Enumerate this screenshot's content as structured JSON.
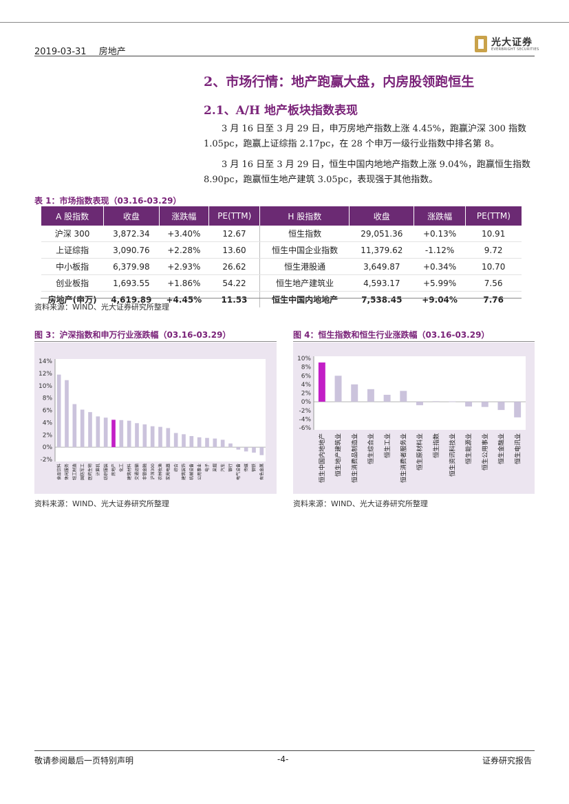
{
  "header": {
    "date": "2019-03-31",
    "category": "房地产",
    "logo_cn": "光大证券",
    "logo_en": "EVERBRIGHT SECURITIES"
  },
  "section": {
    "title": "2、市场行情：地产跑赢大盘，内房股领跑恒生",
    "subtitle": "2.1、A/H 地产板块指数表现",
    "para1": "3 月 16 日至 3 月 29 日，申万房地产指数上涨 4.45%，跑赢沪深 300 指数 1.05pc，跑赢上证综指 2.17pc，在 28 个申万一级行业指数中排名第 8。",
    "para2": "3 月 16 日至 3 月 29 日，恒生中国内地地产指数上涨 9.04%，跑赢恒生指数 8.90pc，跑赢恒生地产建筑 3.05pc，表现强于其他指数。"
  },
  "table": {
    "title": "表 1：市场指数表现（03.16-03.29）",
    "headers": [
      "A 股指数",
      "收盘",
      "涨跌幅",
      "PE(TTM)",
      "H 股指数",
      "收盘",
      "涨跌幅",
      "PE(TTM)"
    ],
    "rows": [
      [
        "沪深 300",
        "3,872.34",
        "+3.40%",
        "12.67",
        "恒生指数",
        "29,051.36",
        "+0.13%",
        "10.91"
      ],
      [
        "上证综指",
        "3,090.76",
        "+2.28%",
        "13.60",
        "恒生中国企业指数",
        "11,379.62",
        "-1.12%",
        "9.72"
      ],
      [
        "中小板指",
        "6,379.98",
        "+2.93%",
        "26.62",
        "恒生港股通",
        "3,649.87",
        "+0.34%",
        "10.70"
      ],
      [
        "创业板指",
        "1,693.55",
        "+1.86%",
        "54.22",
        "恒生地产建筑业",
        "4,593.17",
        "+5.99%",
        "7.56"
      ],
      [
        "房地产(申万)",
        "4,619.89",
        "+4.45%",
        "11.53",
        "恒生中国内地地产",
        "7,538.45",
        "+9.04%",
        "7.76"
      ]
    ],
    "source": "资料来源：WIND、光大证券研究所整理"
  },
  "chart_data": [
    {
      "type": "bar",
      "title": "图 3：沪深指数和申万行业涨跌幅（03.16-03.29）",
      "ylim": [
        -2,
        14
      ],
      "ytick_labels": [
        "14%",
        "12%",
        "10%",
        "8%",
        "6%",
        "4%",
        "2%",
        "0%",
        "-2%"
      ],
      "categories": [
        "食品饮料",
        "休闲服务",
        "轻工制造",
        "国防军工",
        "医药生物",
        "计算机",
        "纺织服装",
        "房地产",
        "化工",
        "建筑材料",
        "交通运输",
        "非银金融",
        "沪深300",
        "农林牧渔",
        "家用电器",
        "综合",
        "建筑装饰",
        "机械设备",
        "公用事业",
        "电子",
        "采掘",
        "汽车",
        "银行",
        "电气设备",
        "传媒",
        "钢铁",
        "有色金属"
      ],
      "values": [
        11.8,
        10.9,
        7.0,
        6.1,
        5.7,
        5.0,
        4.8,
        4.45,
        4.4,
        4.3,
        3.9,
        3.7,
        3.4,
        3.3,
        3.1,
        2.3,
        2.1,
        1.8,
        1.6,
        1.5,
        1.4,
        1.2,
        0.6,
        -0.4,
        -0.7,
        -0.9,
        -1.3
      ],
      "highlight": "房地产",
      "bar_color": "#cbc3dc",
      "highlight_color": "#c21fc6",
      "source": "资料来源：WIND、光大证券研究所整理"
    },
    {
      "type": "bar",
      "title": "图 4：恒生指数和恒生行业涨跌幅（03.16-03.29）",
      "ylim": [
        -6,
        10
      ],
      "ytick_labels": [
        "10%",
        "8%",
        "6%",
        "4%",
        "2%",
        "0%",
        "-2%",
        "-4%",
        "-6%"
      ],
      "categories": [
        "恒生中国内地地产",
        "恒生地产建筑业",
        "恒生消费品制造业",
        "恒生综合业",
        "恒生工业",
        "恒生消费者服务业",
        "恒生原材料业",
        "恒生指数",
        "恒生资讯科技业",
        "恒生能源业",
        "恒生公用事业",
        "恒生金融业",
        "恒生电讯业"
      ],
      "values": [
        9.04,
        5.99,
        4.0,
        2.9,
        1.6,
        2.5,
        -0.8,
        0.13,
        0.1,
        -1.1,
        -1.2,
        -1.9,
        -3.6
      ],
      "highlight": "恒生中国内地地产",
      "bar_color": "#cbc3dc",
      "highlight_color": "#c21fc6",
      "source": "资料来源：WIND、光大证券研究所整理"
    }
  ],
  "footer": {
    "left": "敬请参阅最后一页特别声明",
    "page": "-4-",
    "right": "证券研究报告"
  }
}
